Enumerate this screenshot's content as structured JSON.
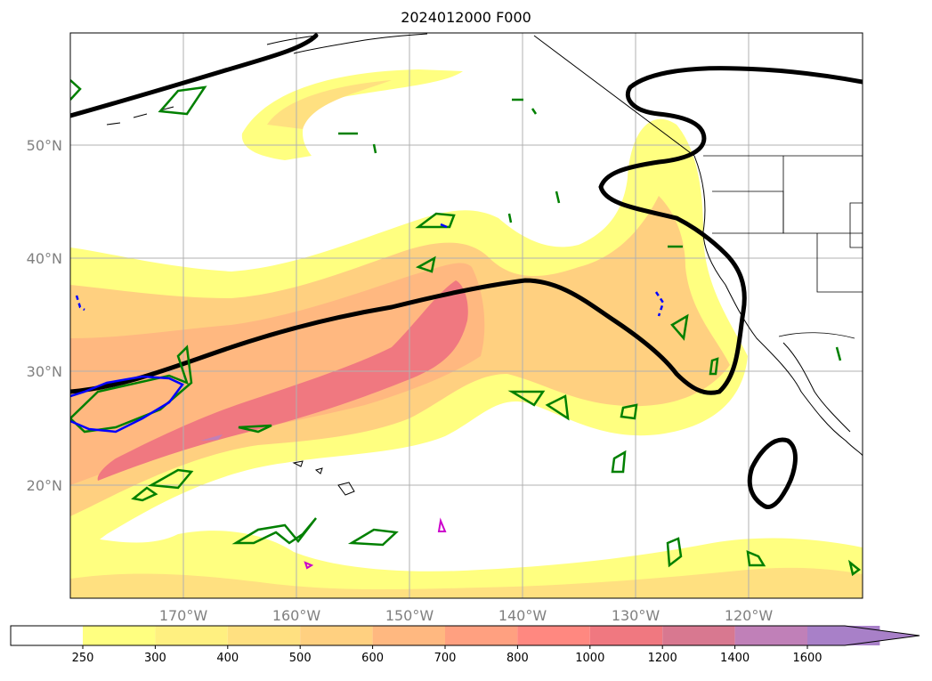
{
  "title": "2024012000 F000",
  "map": {
    "lon_range": [
      -180,
      -110
    ],
    "lat_range": [
      10,
      60
    ],
    "lat_labels": [
      "20°N",
      "30°N",
      "40°N",
      "50°N"
    ],
    "lon_labels": [
      "170°W",
      "160°W",
      "150°W",
      "140°W",
      "130°W",
      "120°W"
    ],
    "grid": true,
    "colors": {
      "coast": "#000000",
      "contour_green": "#008000",
      "contour_blue": "#0000ff",
      "contour_magenta": "#cc00cc",
      "heavy_contour": "#000000"
    }
  },
  "colorbar": {
    "labels": [
      "250",
      "300",
      "400",
      "500",
      "600",
      "700",
      "800",
      "1000",
      "1200",
      "1400",
      "1600"
    ],
    "colors": [
      "#ffff80",
      "#fff080",
      "#ffe080",
      "#ffd080",
      "#ffb880",
      "#ffa080",
      "#ff8880",
      "#f07880",
      "#d87890",
      "#c080b8",
      "#a880c8"
    ],
    "extend": "max"
  }
}
